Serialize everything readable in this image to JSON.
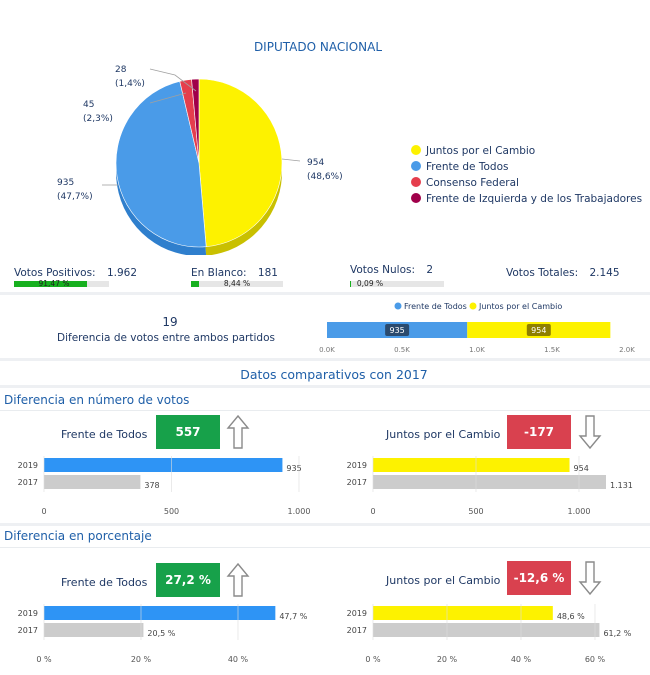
{
  "header": {
    "title": "DIPUTADO NACIONAL"
  },
  "colors": {
    "juntos": "#fdf200",
    "frente": "#4a9be8",
    "consenso": "#e53e4d",
    "izquierda": "#a0004a",
    "green": "#17a14a",
    "red": "#d9414f"
  },
  "chart_data": [
    {
      "type": "pie",
      "title": "DIPUTADO NACIONAL",
      "slices": [
        {
          "name": "Juntos por el Cambio",
          "value": 954,
          "pct": "48,6%",
          "label_value": "954",
          "label_pct": "(48,6%)"
        },
        {
          "name": "Frente de Todos",
          "value": 935,
          "pct": "47,7%",
          "label_value": "935",
          "label_pct": "(47,7%)"
        },
        {
          "name": "Consenso Federal",
          "value": 45,
          "pct": "2,3%",
          "label_value": "45",
          "label_pct": "(2,3%)"
        },
        {
          "name": "Frente de Izquierda y de los Trabajadores",
          "value": 28,
          "pct": "1,4%",
          "label_value": "28",
          "label_pct": "(1,4%)"
        }
      ],
      "legend": [
        "Juntos por el Cambio",
        "Frente de Todos",
        "Consenso Federal",
        "Frente de Izquierda y de los Trabajadores"
      ],
      "legend_position": "right"
    },
    {
      "type": "bar",
      "orientation": "horizontal",
      "stacked": true,
      "legend": [
        "Frente de Todos",
        "Juntos por el Cambio"
      ],
      "series": [
        {
          "name": "Frente de Todos",
          "value": 935,
          "label": "935"
        },
        {
          "name": "Juntos por el Cambio",
          "value": 954,
          "label": "954"
        }
      ],
      "xlim": [
        0,
        2000
      ],
      "ticks": [
        "0.0K",
        "0.5K",
        "1.0K",
        "1.5K",
        "2.0K"
      ]
    },
    {
      "type": "bar",
      "orientation": "horizontal",
      "title": "Frente de Todos",
      "categories": [
        "2019",
        "2017"
      ],
      "values": [
        935,
        378
      ],
      "value_labels": [
        "935",
        "378"
      ],
      "xlim": [
        0,
        1000
      ],
      "ticks": [
        "0",
        "500",
        "1.000"
      ]
    },
    {
      "type": "bar",
      "orientation": "horizontal",
      "title": "Juntos por el Cambio",
      "categories": [
        "2019",
        "2017"
      ],
      "values": [
        954,
        1131
      ],
      "value_labels": [
        "954",
        "1.131"
      ],
      "xlim": [
        0,
        1000
      ],
      "ticks": [
        "0",
        "500",
        "1.000"
      ]
    },
    {
      "type": "bar",
      "orientation": "horizontal",
      "title": "Frente de Todos",
      "categories": [
        "2019",
        "2017"
      ],
      "values": [
        47.7,
        20.5
      ],
      "value_labels": [
        "47,7 %",
        "20,5 %"
      ],
      "xlim": [
        0,
        50
      ],
      "ticks": [
        "0 %",
        "20 %",
        "40 %"
      ]
    },
    {
      "type": "bar",
      "orientation": "horizontal",
      "title": "Juntos por el Cambio",
      "categories": [
        "2019",
        "2017"
      ],
      "values": [
        48.6,
        61.2
      ],
      "value_labels": [
        "48,6 %",
        "61,2 %"
      ],
      "xlim": [
        0,
        60
      ],
      "ticks": [
        "0 %",
        "20 %",
        "40 %",
        "60 %"
      ]
    }
  ],
  "stats": {
    "positivos": {
      "label": "Votos Positivos:",
      "value": "1.962",
      "pct": "91,47 %",
      "fraction": 0.9147
    },
    "blanco": {
      "label": "En Blanco:",
      "value": "181",
      "pct": "8,44 %",
      "fraction": 0.0844
    },
    "nulos": {
      "label": "Votos Nulos:",
      "value": "2",
      "pct": "0,09 %",
      "fraction": 0.0009
    },
    "totales": {
      "label": "Votos Totales:",
      "value": "2.145"
    }
  },
  "diff": {
    "value": "19",
    "label": "Diferencia de votos entre ambos partidos"
  },
  "comparativos": {
    "title": "Datos comparativos con 2017"
  },
  "section_votos": {
    "title": "Diferencia en número de votos",
    "frente_label": "Frente de Todos",
    "frente_kpi": "557",
    "frente_arrow": "up-arrow-icon",
    "juntos_label": "Juntos por el Cambio",
    "juntos_kpi": "-177",
    "juntos_arrow": "down-arrow-icon"
  },
  "section_pct": {
    "title": "Diferencia en porcentaje",
    "frente_label": "Frente de Todos",
    "frente_kpi": "27,2 %",
    "frente_arrow": "up-arrow-icon",
    "juntos_label": "Juntos por el Cambio",
    "juntos_kpi": "-12,6 %",
    "juntos_arrow": "down-arrow-icon"
  }
}
